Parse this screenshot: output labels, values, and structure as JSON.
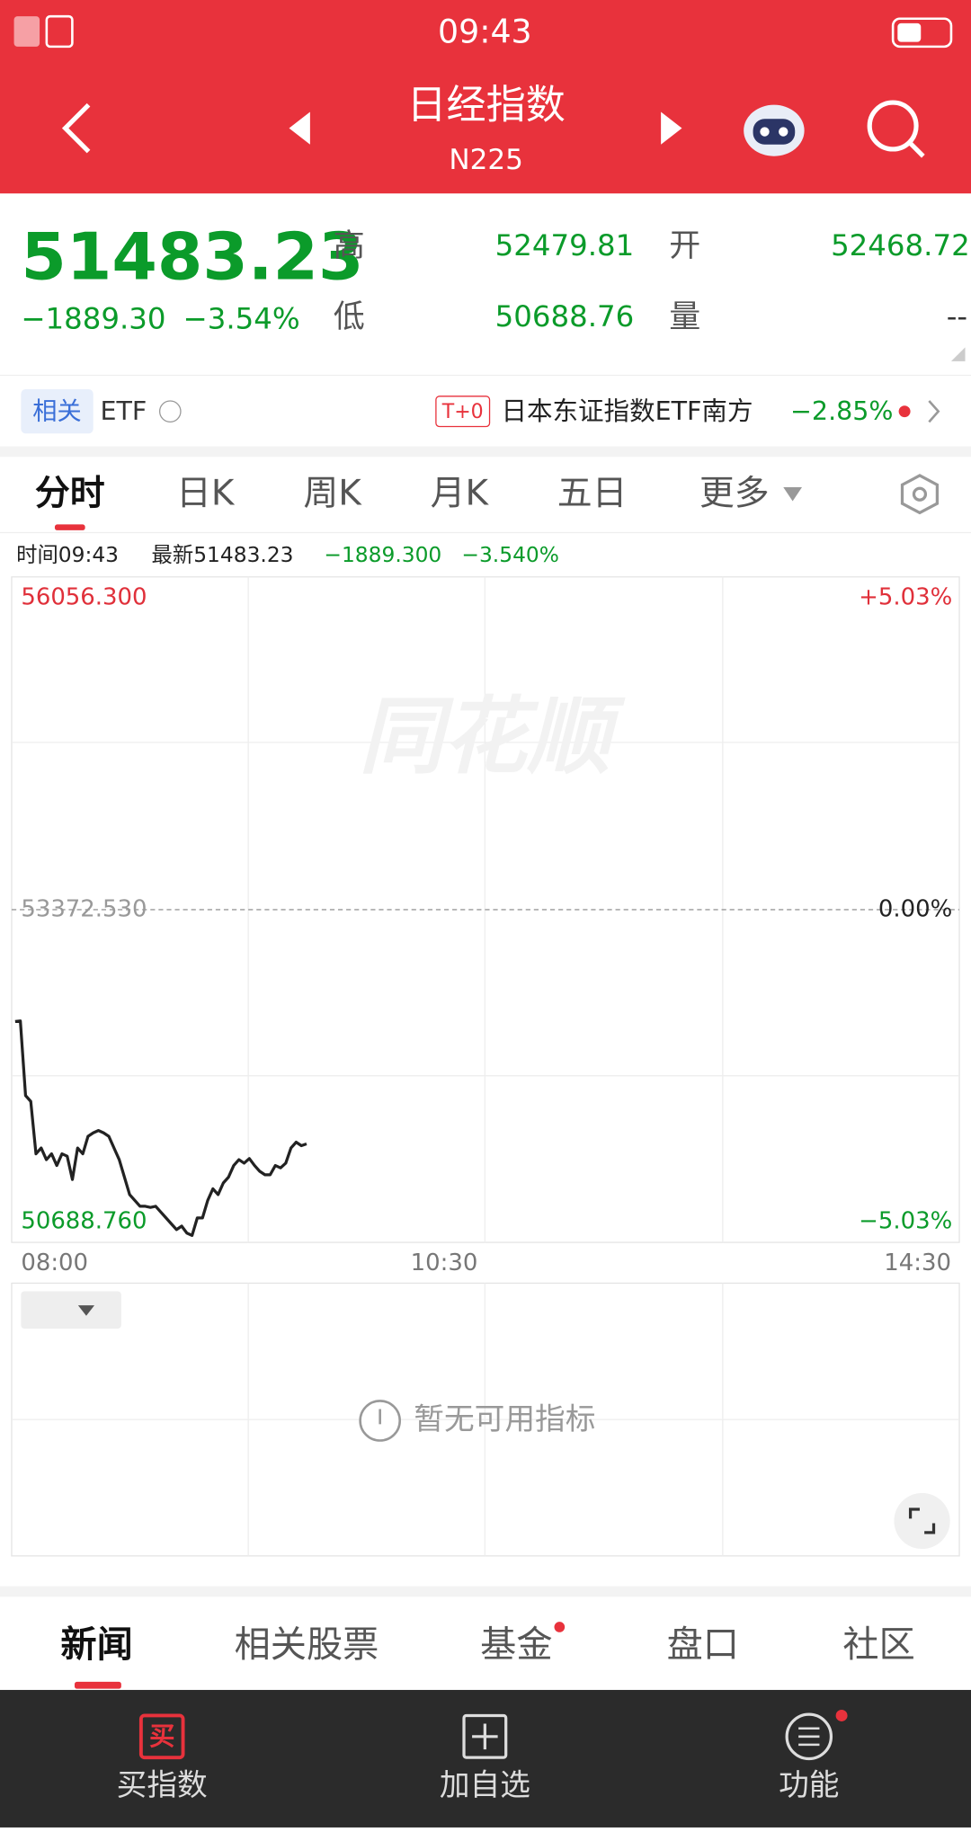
{
  "status_bar": {
    "time": "09:43"
  },
  "header": {
    "title": "日经指数",
    "code": "N225"
  },
  "quote": {
    "price": "51483.23",
    "change": "−1889.30",
    "change_pct": "−3.54%",
    "high_label": "高",
    "high": "52479.81",
    "open_label": "开",
    "open": "52468.72",
    "low_label": "低",
    "low": "50688.76",
    "volume_label": "量",
    "volume": "--"
  },
  "etf": {
    "tag": "相关",
    "label": "ETF",
    "t0": "T+0",
    "name": "日本东证指数ETF南方",
    "change": "−2.85%"
  },
  "tabs": [
    "分时",
    "日K",
    "周K",
    "月K",
    "五日",
    "更多"
  ],
  "info_line": {
    "time": "时间09:43",
    "latest": "最新51483.23",
    "change": "−1889.300",
    "change_pct": "−3.540%"
  },
  "intraday_chart": {
    "type": "line",
    "watermark": "同花顺",
    "ylim": [
      50688.76,
      56056.3
    ],
    "yticks": [
      {
        "value": 56056.3,
        "label": "56056.300"
      },
      {
        "value": 53372.53,
        "label": "53372.530"
      },
      {
        "value": 50688.76,
        "label": "50688.760"
      }
    ],
    "pct_labels": [
      "+5.03%",
      "0.00%",
      "−5.03%"
    ],
    "x_labels": [
      "08:00",
      "10:30",
      "14:30"
    ],
    "color": "#222222",
    "values": [
      52470,
      52475,
      51873,
      51826,
      51403,
      51450,
      51356,
      51403,
      51309,
      51403,
      51384,
      51196,
      51450,
      51403,
      51544,
      51572,
      51591,
      51572,
      51544,
      51450,
      51356,
      51215,
      51074,
      51027,
      50980,
      50980,
      50971,
      50980,
      50933,
      50886,
      50839,
      50792,
      50820,
      50764,
      50745,
      50886,
      50886,
      51027,
      51121,
      51074,
      51168,
      51215,
      51309,
      51356,
      51328,
      51365,
      51309,
      51262,
      51234,
      51234,
      51309,
      51290,
      51328,
      51450,
      51497,
      51469,
      51483.23
    ]
  },
  "indicator": {
    "empty": "暂无可用指标"
  },
  "bottom_tabs": [
    "新闻",
    "相关股票",
    "基金",
    "盘口",
    "社区"
  ],
  "nav": {
    "buy_icon": "买",
    "items": [
      "买指数",
      "加自选",
      "功能"
    ]
  }
}
